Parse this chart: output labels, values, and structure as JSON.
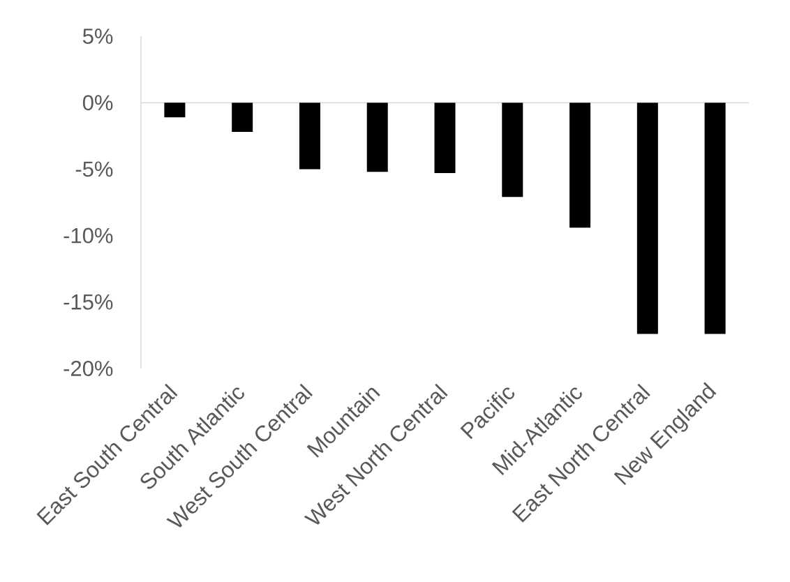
{
  "chart_data": {
    "type": "bar",
    "categories": [
      "East South Central",
      "South Atlantic",
      "West South Central",
      "Mountain",
      "West North Central",
      "Pacific",
      "Mid-Atlantic",
      "East North Central",
      "New England"
    ],
    "values": [
      -1.1,
      -2.2,
      -5.0,
      -5.2,
      -5.3,
      -7.1,
      -9.4,
      -17.4,
      -17.4
    ],
    "color": "#000000",
    "ylim": [
      -20,
      5
    ],
    "yticks": [
      {
        "value": 5,
        "label": "5%"
      },
      {
        "value": 0,
        "label": "0%"
      },
      {
        "value": -5,
        "label": "-5%"
      },
      {
        "value": -10,
        "label": "-10%"
      },
      {
        "value": -15,
        "label": "-15%"
      },
      {
        "value": -20,
        "label": "-20%"
      }
    ]
  }
}
